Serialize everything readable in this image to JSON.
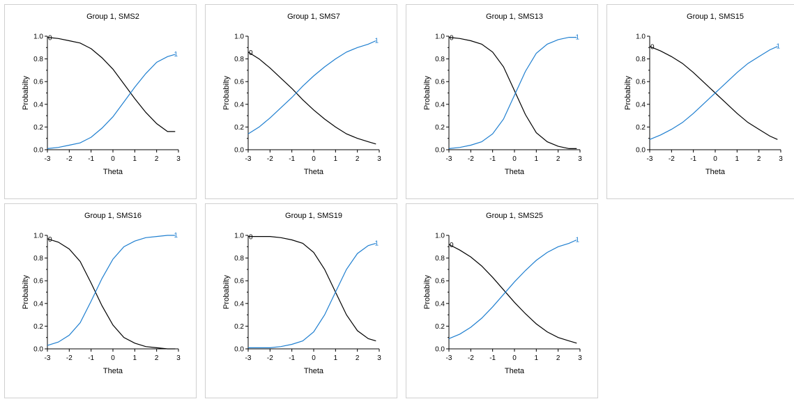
{
  "colors": {
    "category_0": "#000000",
    "category_1": "#1f7fd0",
    "axis": "#000000",
    "panel_border": "#d0d0d0"
  },
  "chart_data": [
    {
      "type": "line",
      "title": "Group 1, SMS2",
      "xlabel": "Theta",
      "ylabel": "Probabilty",
      "xlim": [
        -3,
        3
      ],
      "ylim": [
        0,
        1
      ],
      "xticks": [
        "-3",
        "-2",
        "-1",
        "0",
        "1",
        "2",
        "3"
      ],
      "yticks": [
        "0.0",
        "0.2",
        "0.4",
        "0.6",
        "0.8",
        "1.0"
      ],
      "grid": false,
      "series": [
        {
          "name": "0",
          "x": [
            -3,
            -2.5,
            -2,
            -1.5,
            -1,
            -0.5,
            0,
            0.5,
            1,
            1.5,
            2,
            2.5,
            2.85
          ],
          "values": [
            0.99,
            0.98,
            0.96,
            0.94,
            0.89,
            0.81,
            0.71,
            0.58,
            0.45,
            0.33,
            0.23,
            0.16,
            0.16
          ]
        },
        {
          "name": "1",
          "x": [
            -3,
            -2.5,
            -2,
            -1.5,
            -1,
            -0.5,
            0,
            0.5,
            1,
            1.5,
            2,
            2.5,
            2.85
          ],
          "values": [
            0.01,
            0.02,
            0.04,
            0.06,
            0.11,
            0.19,
            0.29,
            0.42,
            0.55,
            0.67,
            0.77,
            0.82,
            0.84
          ]
        }
      ]
    },
    {
      "type": "line",
      "title": "Group 1, SMS7",
      "xlabel": "Theta",
      "ylabel": "Probabilty",
      "xlim": [
        -3,
        3
      ],
      "ylim": [
        0,
        1
      ],
      "xticks": [
        "-3",
        "-2",
        "-1",
        "0",
        "1",
        "2",
        "3"
      ],
      "yticks": [
        "0.0",
        "0.2",
        "0.4",
        "0.6",
        "0.8",
        "1.0"
      ],
      "grid": false,
      "series": [
        {
          "name": "0",
          "x": [
            -3,
            -2.5,
            -2,
            -1.5,
            -1,
            -0.5,
            0,
            0.5,
            1,
            1.5,
            2,
            2.5,
            2.85
          ],
          "values": [
            0.86,
            0.8,
            0.72,
            0.63,
            0.54,
            0.44,
            0.35,
            0.27,
            0.2,
            0.14,
            0.1,
            0.07,
            0.05
          ]
        },
        {
          "name": "1",
          "x": [
            -3,
            -2.5,
            -2,
            -1.5,
            -1,
            -0.5,
            0,
            0.5,
            1,
            1.5,
            2,
            2.5,
            2.85
          ],
          "values": [
            0.14,
            0.2,
            0.28,
            0.37,
            0.46,
            0.56,
            0.65,
            0.73,
            0.8,
            0.86,
            0.9,
            0.93,
            0.96
          ]
        }
      ]
    },
    {
      "type": "line",
      "title": "Group 1, SMS13",
      "xlabel": "Theta",
      "ylabel": "Probabilty",
      "xlim": [
        -3,
        3
      ],
      "ylim": [
        0,
        1
      ],
      "xticks": [
        "-3",
        "-2",
        "-1",
        "0",
        "1",
        "2",
        "3"
      ],
      "yticks": [
        "0.0",
        "0.2",
        "0.4",
        "0.6",
        "0.8",
        "1.0"
      ],
      "grid": false,
      "series": [
        {
          "name": "0",
          "x": [
            -3,
            -2.5,
            -2,
            -1.5,
            -1,
            -0.5,
            0,
            0.5,
            1,
            1.5,
            2,
            2.5,
            2.85
          ],
          "values": [
            0.99,
            0.98,
            0.96,
            0.93,
            0.86,
            0.73,
            0.52,
            0.31,
            0.15,
            0.07,
            0.03,
            0.01,
            0.01
          ]
        },
        {
          "name": "1",
          "x": [
            -3,
            -2.5,
            -2,
            -1.5,
            -1,
            -0.5,
            0,
            0.5,
            1,
            1.5,
            2,
            2.5,
            2.85
          ],
          "values": [
            0.01,
            0.02,
            0.04,
            0.07,
            0.14,
            0.27,
            0.48,
            0.69,
            0.85,
            0.93,
            0.97,
            0.99,
            0.99
          ]
        }
      ]
    },
    {
      "type": "line",
      "title": "Group 1, SMS15",
      "xlabel": "Theta",
      "ylabel": "Probabilty",
      "xlim": [
        -3,
        3
      ],
      "ylim": [
        0,
        1
      ],
      "xticks": [
        "-3",
        "-2",
        "-1",
        "0",
        "1",
        "2",
        "3"
      ],
      "yticks": [
        "0.0",
        "0.2",
        "0.4",
        "0.6",
        "0.8",
        "1.0"
      ],
      "grid": false,
      "series": [
        {
          "name": "0",
          "x": [
            -3,
            -2.5,
            -2,
            -1.5,
            -1,
            -0.5,
            0,
            0.5,
            1,
            1.5,
            2,
            2.5,
            2.85
          ],
          "values": [
            0.91,
            0.87,
            0.82,
            0.76,
            0.68,
            0.59,
            0.5,
            0.41,
            0.32,
            0.24,
            0.18,
            0.12,
            0.09
          ]
        },
        {
          "name": "1",
          "x": [
            -3,
            -2.5,
            -2,
            -1.5,
            -1,
            -0.5,
            0,
            0.5,
            1,
            1.5,
            2,
            2.5,
            2.85
          ],
          "values": [
            0.09,
            0.13,
            0.18,
            0.24,
            0.32,
            0.41,
            0.5,
            0.59,
            0.68,
            0.76,
            0.82,
            0.88,
            0.91
          ]
        }
      ]
    },
    {
      "type": "line",
      "title": "Group 1, SMS16",
      "xlabel": "Theta",
      "ylabel": "Probabilty",
      "xlim": [
        -3,
        3
      ],
      "ylim": [
        0,
        1
      ],
      "xticks": [
        "-3",
        "-2",
        "-1",
        "0",
        "1",
        "2",
        "3"
      ],
      "yticks": [
        "0.0",
        "0.2",
        "0.4",
        "0.6",
        "0.8",
        "1.0"
      ],
      "grid": false,
      "series": [
        {
          "name": "0",
          "x": [
            -3,
            -2.5,
            -2,
            -1.5,
            -1,
            -0.5,
            0,
            0.5,
            1,
            1.5,
            2,
            2.5,
            2.85
          ],
          "values": [
            0.97,
            0.94,
            0.88,
            0.77,
            0.58,
            0.38,
            0.21,
            0.1,
            0.05,
            0.02,
            0.01,
            0.0,
            0.0
          ]
        },
        {
          "name": "1",
          "x": [
            -3,
            -2.5,
            -2,
            -1.5,
            -1,
            -0.5,
            0,
            0.5,
            1,
            1.5,
            2,
            2.5,
            2.85
          ],
          "values": [
            0.03,
            0.06,
            0.12,
            0.23,
            0.42,
            0.62,
            0.79,
            0.9,
            0.95,
            0.98,
            0.99,
            1.0,
            1.0
          ]
        }
      ]
    },
    {
      "type": "line",
      "title": "Group 1, SMS19",
      "xlabel": "Theta",
      "ylabel": "Probabilty",
      "xlim": [
        -3,
        3
      ],
      "ylim": [
        0,
        1
      ],
      "xticks": [
        "-3",
        "-2",
        "-1",
        "0",
        "1",
        "2",
        "3"
      ],
      "yticks": [
        "0.0",
        "0.2",
        "0.4",
        "0.6",
        "0.8",
        "1.0"
      ],
      "grid": false,
      "series": [
        {
          "name": "0",
          "x": [
            -3,
            -2.5,
            -2,
            -1.5,
            -1,
            -0.5,
            0,
            0.5,
            1,
            1.5,
            2,
            2.5,
            2.85
          ],
          "values": [
            0.99,
            0.99,
            0.99,
            0.98,
            0.96,
            0.93,
            0.85,
            0.7,
            0.5,
            0.3,
            0.16,
            0.09,
            0.07
          ]
        },
        {
          "name": "1",
          "x": [
            -3,
            -2.5,
            -2,
            -1.5,
            -1,
            -0.5,
            0,
            0.5,
            1,
            1.5,
            2,
            2.5,
            2.85
          ],
          "values": [
            0.01,
            0.01,
            0.01,
            0.02,
            0.04,
            0.07,
            0.15,
            0.3,
            0.5,
            0.7,
            0.84,
            0.91,
            0.93
          ]
        }
      ]
    },
    {
      "type": "line",
      "title": "Group 1, SMS25",
      "xlabel": "Theta",
      "ylabel": "Probabilty",
      "xlim": [
        -3,
        3
      ],
      "ylim": [
        0,
        1
      ],
      "xticks": [
        "-3",
        "-2",
        "-1",
        "0",
        "1",
        "2",
        "3"
      ],
      "yticks": [
        "0.0",
        "0.2",
        "0.4",
        "0.6",
        "0.8",
        "1.0"
      ],
      "grid": false,
      "series": [
        {
          "name": "0",
          "x": [
            -3,
            -2.5,
            -2,
            -1.5,
            -1,
            -0.5,
            0,
            0.5,
            1,
            1.5,
            2,
            2.5,
            2.85
          ],
          "values": [
            0.92,
            0.87,
            0.81,
            0.73,
            0.63,
            0.52,
            0.41,
            0.31,
            0.22,
            0.15,
            0.1,
            0.07,
            0.05
          ]
        },
        {
          "name": "1",
          "x": [
            -3,
            -2.5,
            -2,
            -1.5,
            -1,
            -0.5,
            0,
            0.5,
            1,
            1.5,
            2,
            2.5,
            2.85
          ],
          "values": [
            0.09,
            0.13,
            0.19,
            0.27,
            0.37,
            0.48,
            0.59,
            0.69,
            0.78,
            0.85,
            0.9,
            0.93,
            0.96
          ]
        }
      ]
    }
  ]
}
